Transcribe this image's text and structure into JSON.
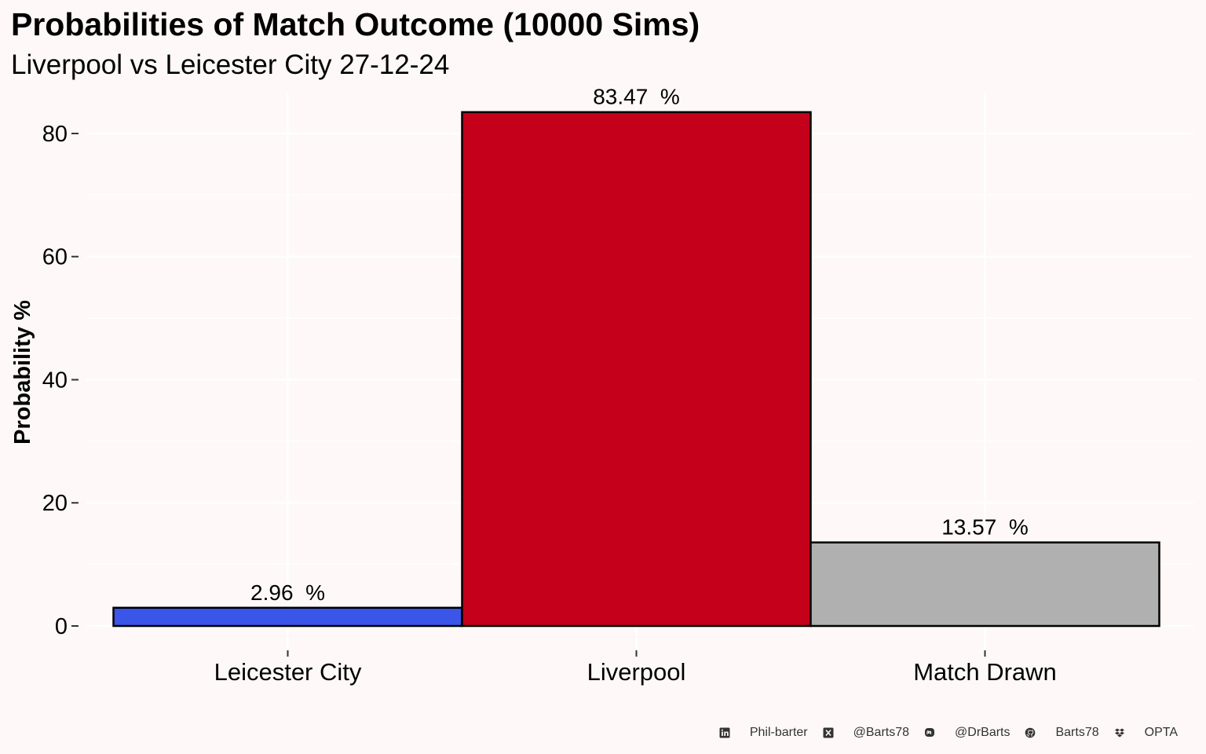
{
  "chart_data": {
    "type": "bar",
    "title": "Probabilities of Match Outcome (10000 Sims)",
    "subtitle": "Liverpool vs Leicester City 27-12-24",
    "xlabel": "",
    "ylabel": "Probability %",
    "categories": [
      "Leicester City",
      "Liverpool",
      "Match Drawn"
    ],
    "values": [
      2.96,
      83.47,
      13.57
    ],
    "data_labels": [
      "2.96  %",
      "83.47  %",
      "13.57  %"
    ],
    "bar_colors": [
      "#3a55e8",
      "#c4001a",
      "#b0b0b0"
    ],
    "bar_outline": "#000000",
    "ylim": [
      0,
      86.5
    ],
    "yticks": [
      0,
      20,
      40,
      60,
      80
    ],
    "grid": true,
    "legend": "none",
    "background": "#fef9f8"
  },
  "caption": {
    "items": [
      {
        "icon": "linkedin-icon",
        "text": "Phil-barter"
      },
      {
        "icon": "x-twitter-icon",
        "text": "@Barts78"
      },
      {
        "icon": "mastodon-icon",
        "text": "@DrBarts"
      },
      {
        "icon": "github-icon",
        "text": "Barts78"
      },
      {
        "icon": "dropbox-icon",
        "text": "OPTA"
      }
    ]
  }
}
